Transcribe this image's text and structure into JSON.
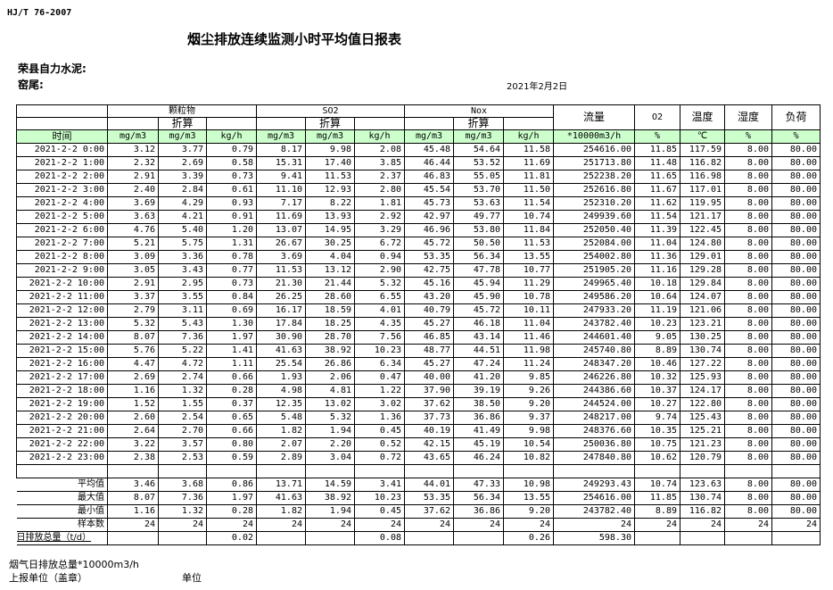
{
  "header": {
    "standard": "HJ/T  76-2007",
    "title": "烟尘排放连续监测小时平均值日报表",
    "company": "荣县自力水泥:",
    "kiln": "窑尾:",
    "date": "2021年2月2日"
  },
  "table": {
    "groups": {
      "pm": "颗粒物",
      "so2": "SO2",
      "nox": "Nox",
      "flow": "流量",
      "o2": "O2",
      "temp": "温度",
      "humidity": "湿度",
      "load": "负荷",
      "converted": "折算"
    },
    "units": [
      "时间",
      "mg/m3",
      "mg/m3",
      "kg/h",
      "mg/m3",
      "mg/m3",
      "kg/h",
      "mg/m3",
      "mg/m3",
      "kg/h",
      "*10000m3/h",
      "%",
      "℃",
      "%",
      "%"
    ],
    "rows": [
      [
        "2021-2-2 0:00",
        "3.12",
        "3.77",
        "0.79",
        "8.17",
        "9.98",
        "2.08",
        "45.48",
        "54.64",
        "11.58",
        "254616.00",
        "11.85",
        "117.59",
        "8.00",
        "80.00"
      ],
      [
        "2021-2-2 1:00",
        "2.32",
        "2.69",
        "0.58",
        "15.31",
        "17.40",
        "3.85",
        "46.44",
        "53.52",
        "11.69",
        "251713.80",
        "11.48",
        "116.82",
        "8.00",
        "80.00"
      ],
      [
        "2021-2-2 2:00",
        "2.91",
        "3.39",
        "0.73",
        "9.41",
        "11.53",
        "2.37",
        "46.83",
        "55.05",
        "11.81",
        "252238.20",
        "11.65",
        "116.98",
        "8.00",
        "80.00"
      ],
      [
        "2021-2-2 3:00",
        "2.40",
        "2.84",
        "0.61",
        "11.10",
        "12.93",
        "2.80",
        "45.54",
        "53.70",
        "11.50",
        "252616.80",
        "11.67",
        "117.01",
        "8.00",
        "80.00"
      ],
      [
        "2021-2-2 4:00",
        "3.69",
        "4.29",
        "0.93",
        "7.17",
        "8.22",
        "1.81",
        "45.73",
        "53.63",
        "11.54",
        "252310.20",
        "11.62",
        "119.95",
        "8.00",
        "80.00"
      ],
      [
        "2021-2-2 5:00",
        "3.63",
        "4.21",
        "0.91",
        "11.69",
        "13.93",
        "2.92",
        "42.97",
        "49.77",
        "10.74",
        "249939.60",
        "11.54",
        "121.17",
        "8.00",
        "80.00"
      ],
      [
        "2021-2-2 6:00",
        "4.76",
        "5.40",
        "1.20",
        "13.07",
        "14.95",
        "3.29",
        "46.96",
        "53.80",
        "11.84",
        "252050.40",
        "11.39",
        "122.45",
        "8.00",
        "80.00"
      ],
      [
        "2021-2-2 7:00",
        "5.21",
        "5.75",
        "1.31",
        "26.67",
        "30.25",
        "6.72",
        "45.72",
        "50.50",
        "11.53",
        "252084.00",
        "11.04",
        "124.80",
        "8.00",
        "80.00"
      ],
      [
        "2021-2-2 8:00",
        "3.09",
        "3.36",
        "0.78",
        "3.69",
        "4.04",
        "0.94",
        "53.35",
        "56.34",
        "13.55",
        "254002.80",
        "11.36",
        "129.01",
        "8.00",
        "80.00"
      ],
      [
        "2021-2-2 9:00",
        "3.05",
        "3.43",
        "0.77",
        "11.53",
        "13.12",
        "2.90",
        "42.75",
        "47.78",
        "10.77",
        "251905.20",
        "11.16",
        "129.28",
        "8.00",
        "80.00"
      ],
      [
        "2021-2-2 10:00",
        "2.91",
        "2.95",
        "0.73",
        "21.30",
        "21.44",
        "5.32",
        "45.16",
        "45.94",
        "11.29",
        "249965.40",
        "10.18",
        "129.84",
        "8.00",
        "80.00"
      ],
      [
        "2021-2-2 11:00",
        "3.37",
        "3.55",
        "0.84",
        "26.25",
        "28.60",
        "6.55",
        "43.20",
        "45.90",
        "10.78",
        "249586.20",
        "10.64",
        "124.07",
        "8.00",
        "80.00"
      ],
      [
        "2021-2-2 12:00",
        "2.79",
        "3.11",
        "0.69",
        "16.17",
        "18.59",
        "4.01",
        "40.79",
        "45.72",
        "10.11",
        "247933.20",
        "11.19",
        "121.06",
        "8.00",
        "80.00"
      ],
      [
        "2021-2-2 13:00",
        "5.32",
        "5.43",
        "1.30",
        "17.84",
        "18.25",
        "4.35",
        "45.27",
        "46.18",
        "11.04",
        "243782.40",
        "10.23",
        "123.21",
        "8.00",
        "80.00"
      ],
      [
        "2021-2-2 14:00",
        "8.07",
        "7.36",
        "1.97",
        "30.90",
        "28.70",
        "7.56",
        "46.85",
        "43.14",
        "11.46",
        "244601.40",
        "9.05",
        "130.25",
        "8.00",
        "80.00"
      ],
      [
        "2021-2-2 15:00",
        "5.76",
        "5.22",
        "1.41",
        "41.63",
        "38.92",
        "10.23",
        "48.77",
        "44.51",
        "11.98",
        "245740.80",
        "8.89",
        "130.74",
        "8.00",
        "80.00"
      ],
      [
        "2021-2-2 16:00",
        "4.47",
        "4.72",
        "1.11",
        "25.54",
        "26.86",
        "6.34",
        "45.27",
        "47.24",
        "11.24",
        "248347.20",
        "10.46",
        "127.22",
        "8.00",
        "80.00"
      ],
      [
        "2021-2-2 17:00",
        "2.69",
        "2.74",
        "0.66",
        "1.93",
        "2.06",
        "0.47",
        "40.00",
        "41.20",
        "9.85",
        "246226.80",
        "10.32",
        "125.93",
        "8.00",
        "80.00"
      ],
      [
        "2021-2-2 18:00",
        "1.16",
        "1.32",
        "0.28",
        "4.98",
        "4.81",
        "1.22",
        "37.90",
        "39.19",
        "9.26",
        "244386.60",
        "10.37",
        "124.17",
        "8.00",
        "80.00"
      ],
      [
        "2021-2-2 19:00",
        "1.52",
        "1.55",
        "0.37",
        "12.35",
        "13.02",
        "3.02",
        "37.62",
        "38.50",
        "9.20",
        "244524.00",
        "10.27",
        "122.80",
        "8.00",
        "80.00"
      ],
      [
        "2021-2-2 20:00",
        "2.60",
        "2.54",
        "0.65",
        "5.48",
        "5.32",
        "1.36",
        "37.73",
        "36.86",
        "9.37",
        "248217.00",
        "9.74",
        "125.43",
        "8.00",
        "80.00"
      ],
      [
        "2021-2-2 21:00",
        "2.64",
        "2.70",
        "0.66",
        "1.82",
        "1.94",
        "0.45",
        "40.19",
        "41.49",
        "9.98",
        "248376.60",
        "10.35",
        "125.21",
        "8.00",
        "80.00"
      ],
      [
        "2021-2-2 22:00",
        "3.22",
        "3.57",
        "0.80",
        "2.07",
        "2.20",
        "0.52",
        "42.15",
        "45.19",
        "10.54",
        "250036.80",
        "10.75",
        "121.23",
        "8.00",
        "80.00"
      ],
      [
        "2021-2-2 23:00",
        "2.38",
        "2.53",
        "0.59",
        "2.89",
        "3.04",
        "0.72",
        "43.65",
        "46.24",
        "10.82",
        "247840.80",
        "10.62",
        "120.79",
        "8.00",
        "80.00"
      ]
    ],
    "summary": [
      [
        "平均值",
        "3.46",
        "3.68",
        "0.86",
        "13.71",
        "14.59",
        "3.41",
        "44.01",
        "47.33",
        "10.98",
        "249293.43",
        "10.74",
        "123.63",
        "8.00",
        "80.00"
      ],
      [
        "最大值",
        "8.07",
        "7.36",
        "1.97",
        "41.63",
        "38.92",
        "10.23",
        "53.35",
        "56.34",
        "13.55",
        "254616.00",
        "11.85",
        "130.74",
        "8.00",
        "80.00"
      ],
      [
        "最小值",
        "1.16",
        "1.32",
        "0.28",
        "1.82",
        "1.94",
        "0.45",
        "37.62",
        "36.86",
        "9.20",
        "243782.40",
        "8.89",
        "116.82",
        "8.00",
        "80.00"
      ],
      [
        "样本数",
        "24",
        "24",
        "24",
        "24",
        "24",
        "24",
        "24",
        "24",
        "24",
        "24",
        "24",
        "24",
        "24",
        "24"
      ]
    ],
    "daily_total": [
      "日排放总量（t/d）",
      "",
      "",
      "0.02",
      "",
      "",
      "0.08",
      "",
      "",
      "0.26",
      "598.30",
      "",
      "",
      "",
      ""
    ]
  },
  "footer": {
    "gas_total": "烟气日排放总量*10000m3/h",
    "report_unit": "上报单位（盖章）",
    "unit": "单位"
  },
  "colors": {
    "unit_row_bg": "#ccffcc"
  }
}
